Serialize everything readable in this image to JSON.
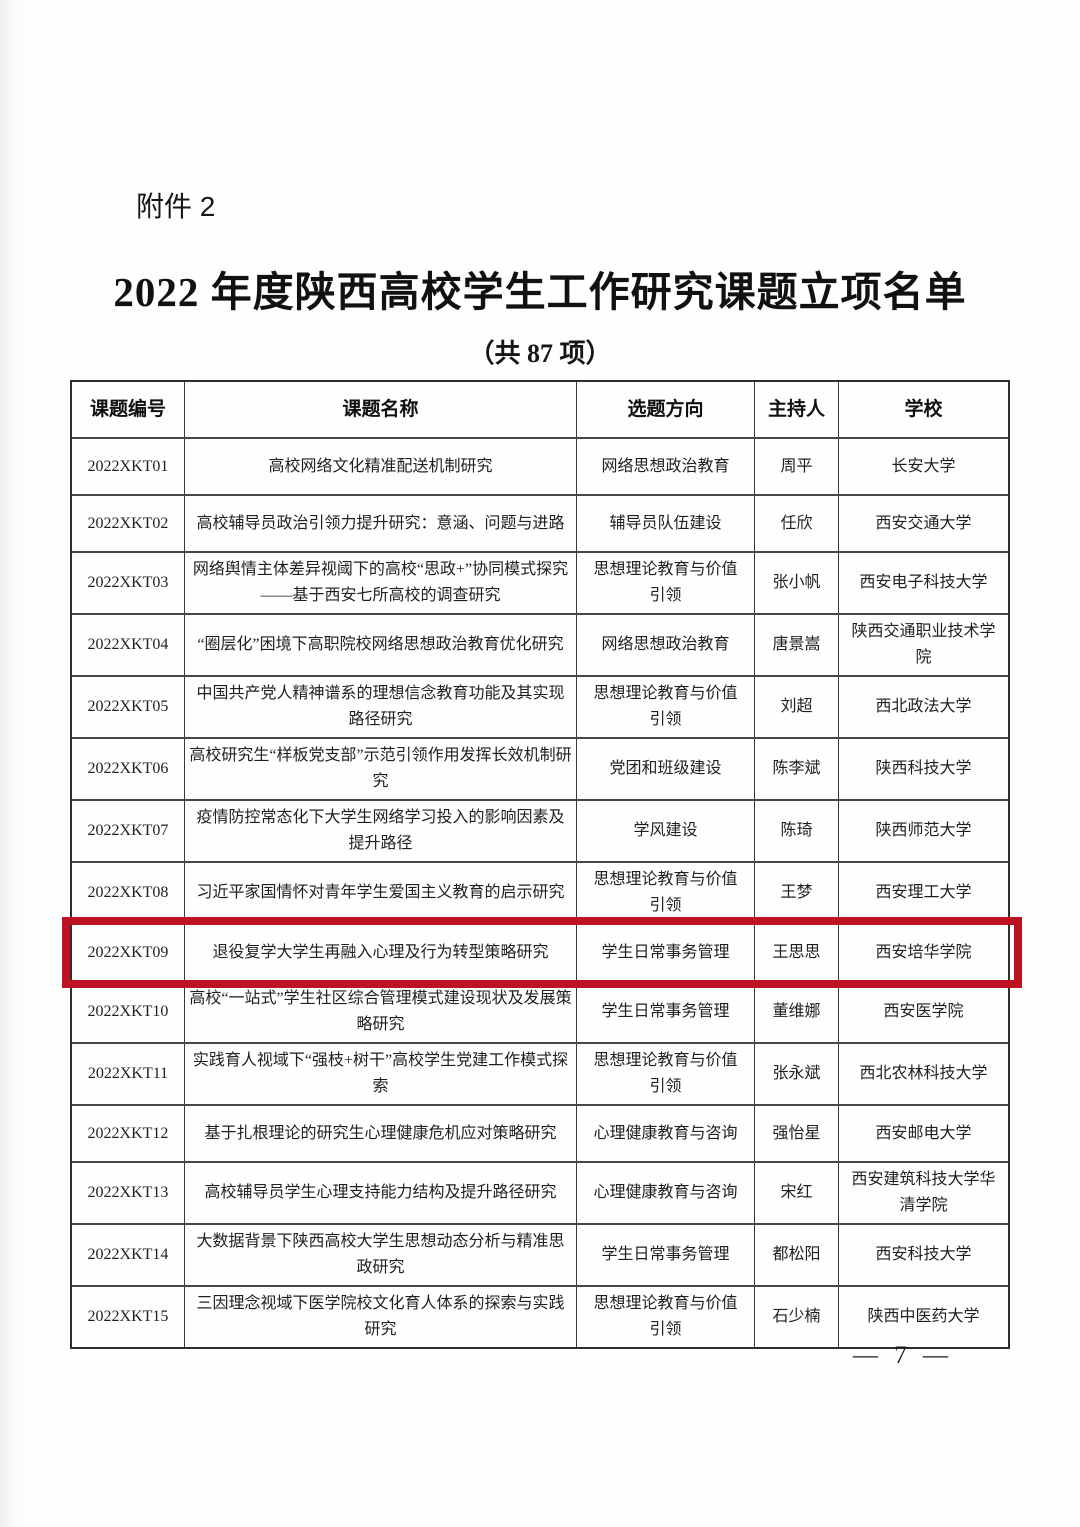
{
  "document": {
    "attachment_label": "附件 2",
    "title": "2022 年度陕西高校学生工作研究课题立项名单",
    "subtitle": "（共 87 项）",
    "page_number": "— 7 —"
  },
  "highlight_color": "#bc1322",
  "table": {
    "columns": {
      "id": "课题编号",
      "title": "课题名称",
      "direction": "选题方向",
      "host": "主持人",
      "school": "学校"
    },
    "rows": [
      {
        "id": "2022XKT01",
        "title": "高校网络文化精准配送机制研究",
        "direction": "网络思想政治教育",
        "host": "周平",
        "school": "长安大学"
      },
      {
        "id": "2022XKT02",
        "title": "高校辅导员政治引领力提升研究：意涵、问题与进路",
        "direction": "辅导员队伍建设",
        "host": "任欣",
        "school": "西安交通大学"
      },
      {
        "id": "2022XKT03",
        "title": "网络舆情主体差异视阈下的高校“思政+”协同模式探究——基于西安七所高校的调查研究",
        "direction": "思想理论教育与价值引领",
        "host": "张小帆",
        "school": "西安电子科技大学"
      },
      {
        "id": "2022XKT04",
        "title": "“圈层化”困境下高职院校网络思想政治教育优化研究",
        "direction": "网络思想政治教育",
        "host": "唐景嵩",
        "school": "陕西交通职业技术学院"
      },
      {
        "id": "2022XKT05",
        "title": "中国共产党人精神谱系的理想信念教育功能及其实现路径研究",
        "direction": "思想理论教育与价值引领",
        "host": "刘超",
        "school": "西北政法大学"
      },
      {
        "id": "2022XKT06",
        "title": "高校研究生“样板党支部”示范引领作用发挥长效机制研究",
        "direction": "党团和班级建设",
        "host": "陈李斌",
        "school": "陕西科技大学"
      },
      {
        "id": "2022XKT07",
        "title": "疫情防控常态化下大学生网络学习投入的影响因素及提升路径",
        "direction": "学风建设",
        "host": "陈琦",
        "school": "陕西师范大学"
      },
      {
        "id": "2022XKT08",
        "title": "习近平家国情怀对青年学生爱国主义教育的启示研究",
        "direction": "思想理论教育与价值引领",
        "host": "王梦",
        "school": "西安理工大学"
      },
      {
        "id": "2022XKT09",
        "title": "退役复学大学生再融入心理及行为转型策略研究",
        "direction": "学生日常事务管理",
        "host": "王思思",
        "school": "西安培华学院"
      },
      {
        "id": "2022XKT10",
        "title": "高校“一站式”学生社区综合管理模式建设现状及发展策略研究",
        "direction": "学生日常事务管理",
        "host": "董维娜",
        "school": "西安医学院"
      },
      {
        "id": "2022XKT11",
        "title": "实践育人视域下“强枝+树干”高校学生党建工作模式探索",
        "direction": "思想理论教育与价值引领",
        "host": "张永斌",
        "school": "西北农林科技大学"
      },
      {
        "id": "2022XKT12",
        "title": "基于扎根理论的研究生心理健康危机应对策略研究",
        "direction": "心理健康教育与咨询",
        "host": "强怡星",
        "school": "西安邮电大学"
      },
      {
        "id": "2022XKT13",
        "title": "高校辅导员学生心理支持能力结构及提升路径研究",
        "direction": "心理健康教育与咨询",
        "host": "宋红",
        "school": "西安建筑科技大学华清学院"
      },
      {
        "id": "2022XKT14",
        "title": "大数据背景下陕西高校大学生思想动态分析与精准思政研究",
        "direction": "学生日常事务管理",
        "host": "都松阳",
        "school": "西安科技大学"
      },
      {
        "id": "2022XKT15",
        "title": "三因理念视域下医学院校文化育人体系的探索与实践研究",
        "direction": "思想理论教育与价值引领",
        "host": "石少楠",
        "school": "陕西中医药大学"
      }
    ]
  }
}
